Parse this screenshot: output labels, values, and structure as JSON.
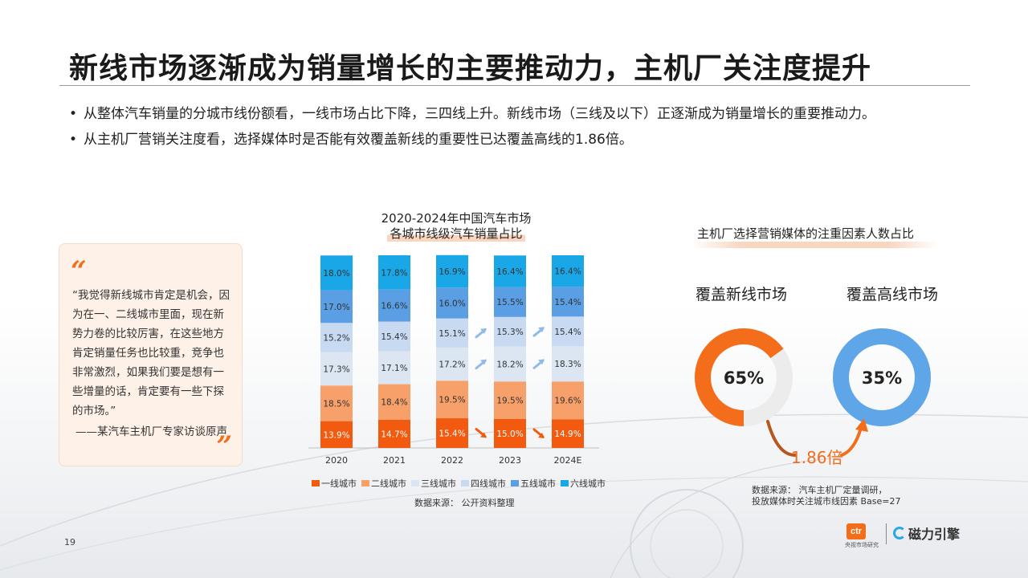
{
  "title": "新线市场逐渐成为销量增长的主要推动力，主机厂关注度提升",
  "bullets": [
    "从整体汽车销量的分城市线份额看，一线市场占比下降，三四线上升。新线市场（三线及以下）正逐渐成为销量增长的重要推动力。",
    "从主机厂营销关注度看，选择媒体时是否能有效覆盖新线的重要性已达覆盖高线的1.86倍。"
  ],
  "quote": {
    "open_mark": "“",
    "close_mark": "”",
    "text": "“我觉得新线城市肯定是机会，因为在一、二线城市里面，现在新势力卷的比较厉害，在这些地方肯定销量任务也比较重，竞争也非常激烈，如果我们要是想有一些增量的话，肯定要有一些下探的市场。”",
    "source": "——某汽车主机厂专家访谈原声"
  },
  "chart_data": [
    {
      "type": "bar",
      "stacked": true,
      "title_line1": "2020-2024年中国汽车市场",
      "title_line2": "各城市线级汽车销量占比",
      "categories": [
        "2020",
        "2021",
        "2022",
        "2023",
        "2024E"
      ],
      "series": [
        {
          "name": "一线城市",
          "color": "#f15a0f",
          "values": [
            13.9,
            14.7,
            15.4,
            15.0,
            14.9
          ]
        },
        {
          "name": "二线城市",
          "color": "#f7a06a",
          "values": [
            18.5,
            18.4,
            19.5,
            19.5,
            19.6
          ]
        },
        {
          "name": "三线城市",
          "color": "#dbe6f2",
          "values": [
            17.3,
            17.1,
            17.2,
            18.2,
            18.3
          ]
        },
        {
          "name": "四线城市",
          "color": "#c8daf1",
          "values": [
            15.2,
            15.4,
            15.1,
            15.3,
            15.4
          ]
        },
        {
          "name": "五线城市",
          "color": "#5a9ee4",
          "values": [
            17.0,
            16.6,
            16.0,
            15.5,
            15.4
          ]
        },
        {
          "name": "六线城市",
          "color": "#1aa7e8",
          "values": [
            18.0,
            17.8,
            16.9,
            16.4,
            16.4
          ]
        }
      ],
      "ylim": [
        0,
        100
      ],
      "grid": false,
      "legend_position": "bottom",
      "source": "数据来源：  公开资料整理"
    },
    {
      "type": "pie",
      "title": "主机厂选择营销媒体的注重因素人数占比",
      "slices": [
        {
          "label": "覆盖新线市场",
          "value": 65,
          "display": "65%",
          "color": "#f36d1b"
        },
        {
          "label": "覆盖高线市场",
          "value": 35,
          "display": "35%",
          "color": "#5fa6e8"
        }
      ],
      "ratio_label": "1.86倍",
      "source_line1": "数据来源：  汽车主机厂定量调研，",
      "source_line2": "投放媒体时关注城市线因素 Base=27"
    }
  ],
  "page_number": "19",
  "logos": {
    "ctr_mark": "ctr",
    "ctr_sub": "央视市场研究",
    "cili": "磁力引擎"
  }
}
